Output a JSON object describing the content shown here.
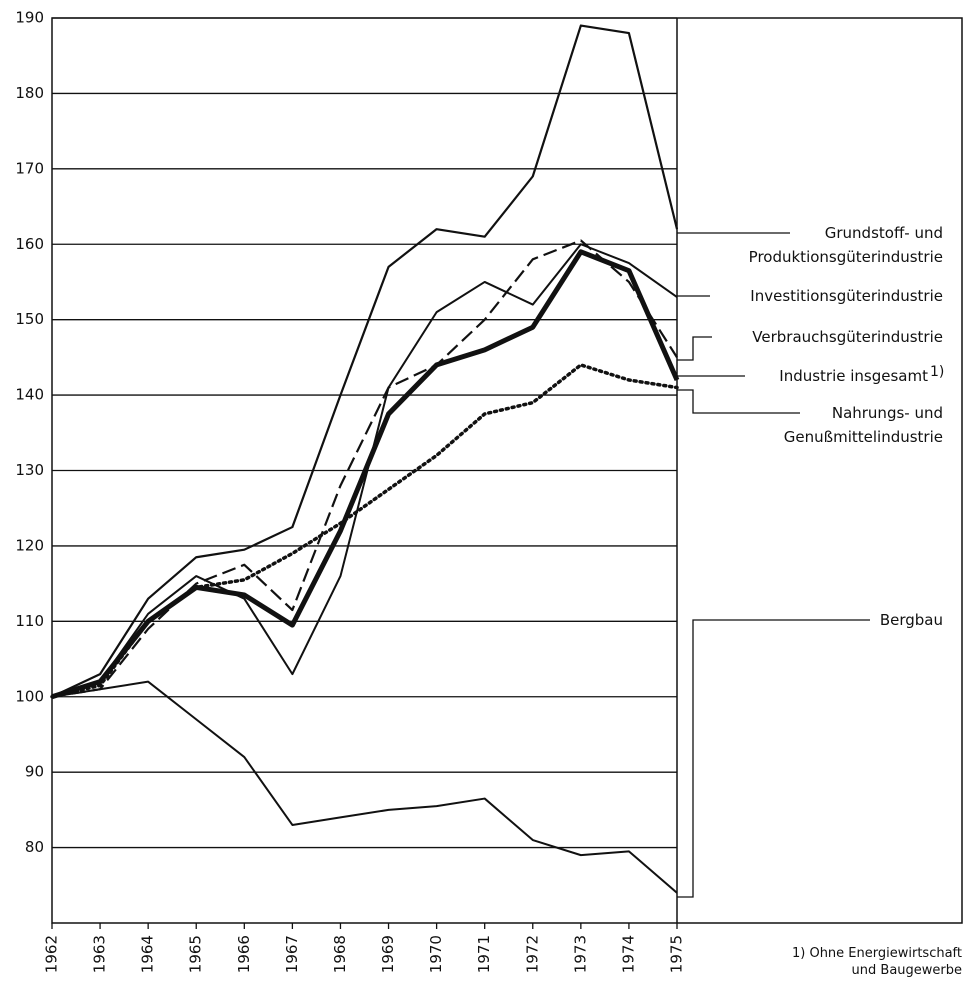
{
  "chart_data": {
    "type": "line",
    "x": [
      1962,
      1963,
      1964,
      1965,
      1966,
      1967,
      1968,
      1969,
      1970,
      1971,
      1972,
      1973,
      1974,
      1975
    ],
    "xlim": [
      1962,
      1975
    ],
    "xticks": [
      1962,
      1963,
      1964,
      1965,
      1966,
      1967,
      1968,
      1969,
      1970,
      1971,
      1972,
      1973,
      1974,
      1975
    ],
    "ylim": [
      70,
      190
    ],
    "yticks": [
      80,
      90,
      100,
      110,
      120,
      130,
      140,
      150,
      160,
      170,
      180,
      190
    ],
    "grid": true,
    "series": [
      {
        "name": "Grundstoff- und\nProduktionsgüterindustrie",
        "color": "#111111",
        "style": "solid",
        "width": 2.2,
        "values": [
          100,
          103,
          113,
          118.5,
          119.5,
          122.5,
          140,
          157,
          162,
          161,
          169,
          189,
          188,
          162
        ]
      },
      {
        "name": "Investitionsgüterindustrie",
        "color": "#111111",
        "style": "solid",
        "width": 2,
        "values": [
          100,
          102,
          111,
          116,
          113,
          103,
          116,
          141,
          151,
          155,
          152,
          160,
          157.5,
          153
        ]
      },
      {
        "name": "Verbrauchsgüterindustrie",
        "color": "#111111",
        "style": "dashed",
        "width": 2.2,
        "values": [
          100,
          101,
          109,
          115,
          117.5,
          111.5,
          128,
          141,
          144,
          150,
          158,
          160.5,
          155,
          145
        ]
      },
      {
        "name": "Industrie insgesamt",
        "marker": "1)",
        "color": "#111111",
        "style": "solid",
        "width": 5,
        "values": [
          100,
          102,
          110,
          114.5,
          113.5,
          109.5,
          122,
          137.5,
          144,
          146,
          149,
          159,
          156.5,
          142
        ]
      },
      {
        "name": "Nahrungs- und\nGenußmittelindustrie",
        "color": "#111111",
        "style": "dotted",
        "width": 3.5,
        "values": [
          100,
          101.5,
          110,
          114.5,
          115.5,
          119,
          123,
          127.5,
          132,
          137.5,
          139,
          144,
          142,
          141
        ]
      },
      {
        "name": "Bergbau",
        "color": "#111111",
        "style": "solid",
        "width": 2,
        "values": [
          100,
          101,
          102,
          97,
          92,
          83,
          84,
          85,
          85.5,
          86.5,
          81,
          79,
          79.5,
          74
        ]
      }
    ],
    "footnote": "1) Ohne Energiewirtschaft\nund Baugewerbe"
  }
}
